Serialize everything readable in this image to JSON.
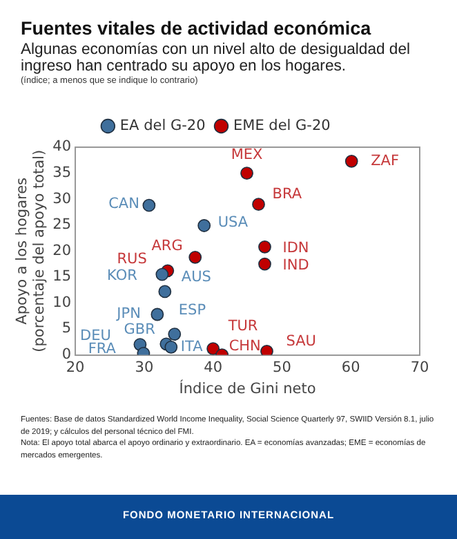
{
  "chart_data": {
    "type": "scatter",
    "title": "Fuentes vitales de actividad económica",
    "subtitle": "Algunas economías con un nivel alto de desigualdad del ingreso han centrado su apoyo en los hogares.",
    "xlabel": "Índice de Gini neto",
    "ylabel": "Apoyo a los hogares\n(porcentaje del apoyo total)",
    "series": [
      {
        "name": "EA del G-20",
        "color": "#3f6f9c",
        "x": [
          30.7,
          38.7,
          32.6,
          33.0,
          31.9,
          34.4,
          33.2,
          33.9,
          29.4,
          29.9
        ],
        "values": [
          28.8,
          24.9,
          15.5,
          12.2,
          7.8,
          4.0,
          2.1,
          1.5,
          2.0,
          0.3
        ]
      },
      {
        "name": "EME del G-20",
        "color": "#c00000",
        "x": [
          44.9,
          60.1,
          46.6,
          47.5,
          47.5,
          37.4,
          33.4,
          40.0,
          41.3,
          47.8
        ],
        "values": [
          35.0,
          37.3,
          29.0,
          20.8,
          17.5,
          18.8,
          16.2,
          1.2,
          0.0,
          0.7
        ]
      }
    ],
    "xlim": [
      20,
      70
    ],
    "xticks": [
      20,
      30,
      40,
      50,
      60,
      70
    ],
    "ylim": [
      0,
      40
    ],
    "yticks": [
      0,
      5,
      10,
      15,
      20,
      25,
      30,
      35,
      40
    ],
    "grid": false,
    "legend": "top",
    "marker": "circle",
    "annotations": [
      "(índice; a menos que se indique lo contrario)",
      {
        "text": "CAN",
        "x": 30.7,
        "y": 28.8
      },
      {
        "text": "USA",
        "x": 38.7,
        "y": 24.9
      },
      {
        "text": "KOR",
        "x": 32.6,
        "y": 15.5
      },
      {
        "text": "AUS",
        "x": 33.0,
        "y": 12.2
      },
      {
        "text": "JPN",
        "x": 31.9,
        "y": 7.8
      },
      {
        "text": "ESP",
        "x": 34.4,
        "y": 4.0
      },
      {
        "text": "GBR",
        "x": 33.2,
        "y": 2.1
      },
      {
        "text": "ITA",
        "x": 33.9,
        "y": 1.5
      },
      {
        "text": "DEU",
        "x": 29.4,
        "y": 2.0
      },
      {
        "text": "FRA",
        "x": 29.9,
        "y": 0.3
      },
      {
        "text": "MEX",
        "x": 44.9,
        "y": 35.0
      },
      {
        "text": "ZAF",
        "x": 60.1,
        "y": 37.3
      },
      {
        "text": "BRA",
        "x": 46.6,
        "y": 29.0
      },
      {
        "text": "IDN",
        "x": 47.5,
        "y": 20.8
      },
      {
        "text": "IND",
        "x": 47.5,
        "y": 17.5
      },
      {
        "text": "ARG",
        "x": 37.4,
        "y": 18.8
      },
      {
        "text": "RUS",
        "x": 33.4,
        "y": 16.2
      },
      {
        "text": "TUR",
        "x": 40.0,
        "y": 1.2
      },
      {
        "text": "CHN",
        "x": 41.3,
        "y": 0.0
      },
      {
        "text": "SAU",
        "x": 47.8,
        "y": 0.7
      },
      "Fuentes: Base de datos Standardized World Income Inequality, Social Science Quarterly 97, SWIID Versión 8.1, julio de 2019; y cálculos del personal técnico del FMI.",
      "Nota: El apoyo total abarca el apoyo ordinario y extraordinario. EA = economías avanzadas; EME = economías de mercados emergentes.",
      "FONDO MONETARIO INTERNACIONAL"
    ]
  }
}
